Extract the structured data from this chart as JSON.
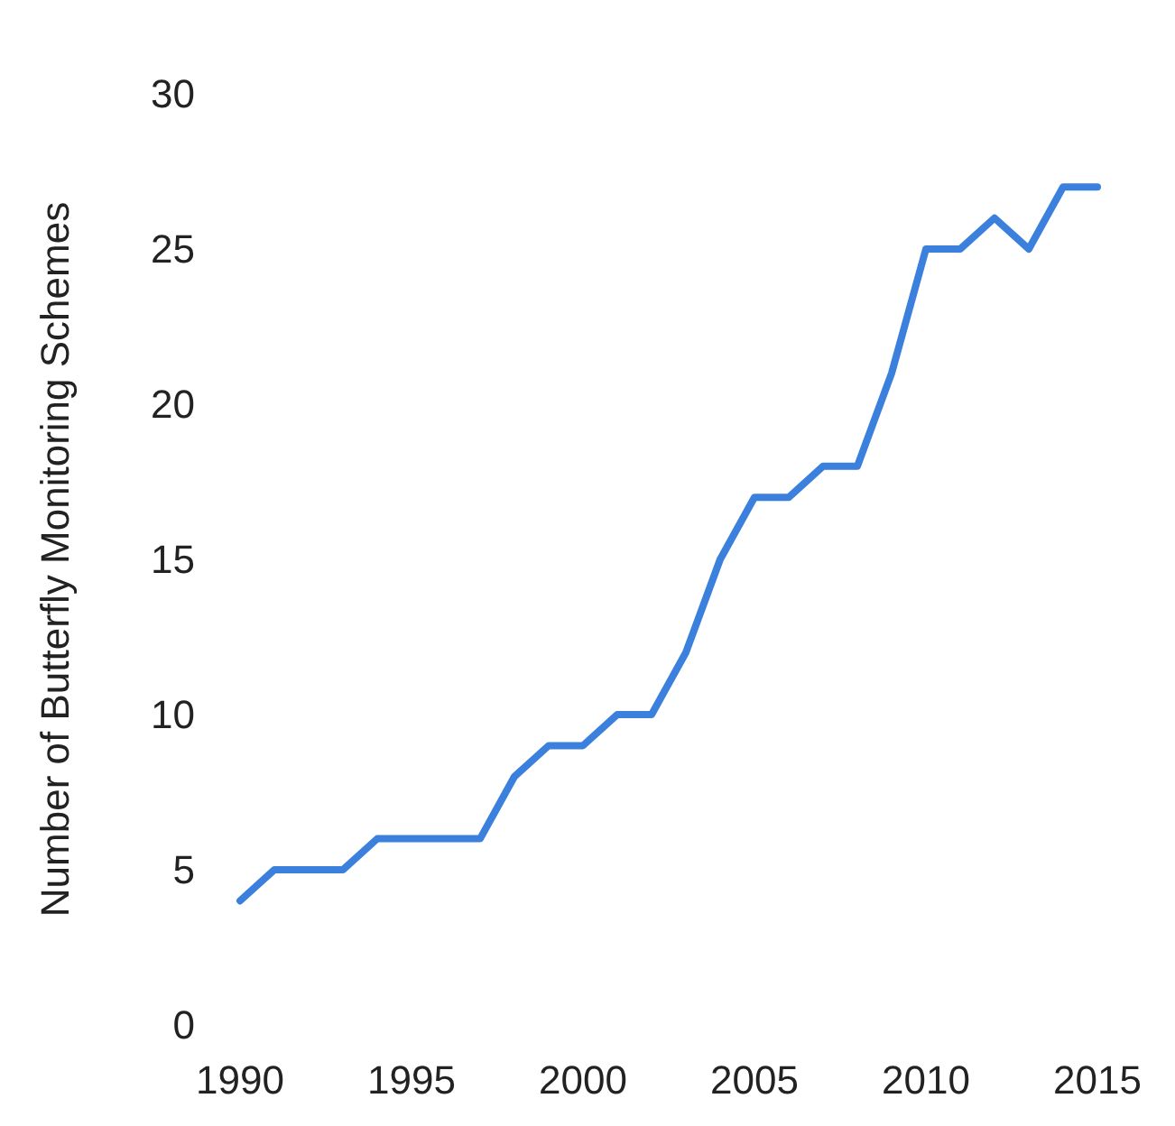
{
  "chart_data": {
    "type": "line",
    "ylabel": "Number of Butterfly Monitoring Schemes",
    "x": [
      1990,
      1991,
      1992,
      1993,
      1994,
      1995,
      1996,
      1997,
      1998,
      1999,
      2000,
      2001,
      2002,
      2003,
      2004,
      2005,
      2006,
      2007,
      2008,
      2009,
      2010,
      2011,
      2012,
      2013,
      2014,
      2015
    ],
    "series": [
      {
        "color": "#3a80dc",
        "values": [
          4,
          5,
          5,
          5,
          6,
          6,
          6,
          6,
          8,
          9,
          9,
          10,
          10,
          12,
          15,
          17,
          17,
          18,
          18,
          21,
          25,
          25,
          26,
          25,
          27,
          27
        ]
      }
    ],
    "xlim": [
      1990,
      2015
    ],
    "xticks": [
      1990,
      1995,
      2000,
      2005,
      2010,
      2015
    ],
    "ylim": [
      0,
      30
    ],
    "yticks": [
      0,
      5,
      10,
      15,
      20,
      25,
      30
    ],
    "grid": false,
    "marker": "none",
    "line_style": "solid"
  }
}
